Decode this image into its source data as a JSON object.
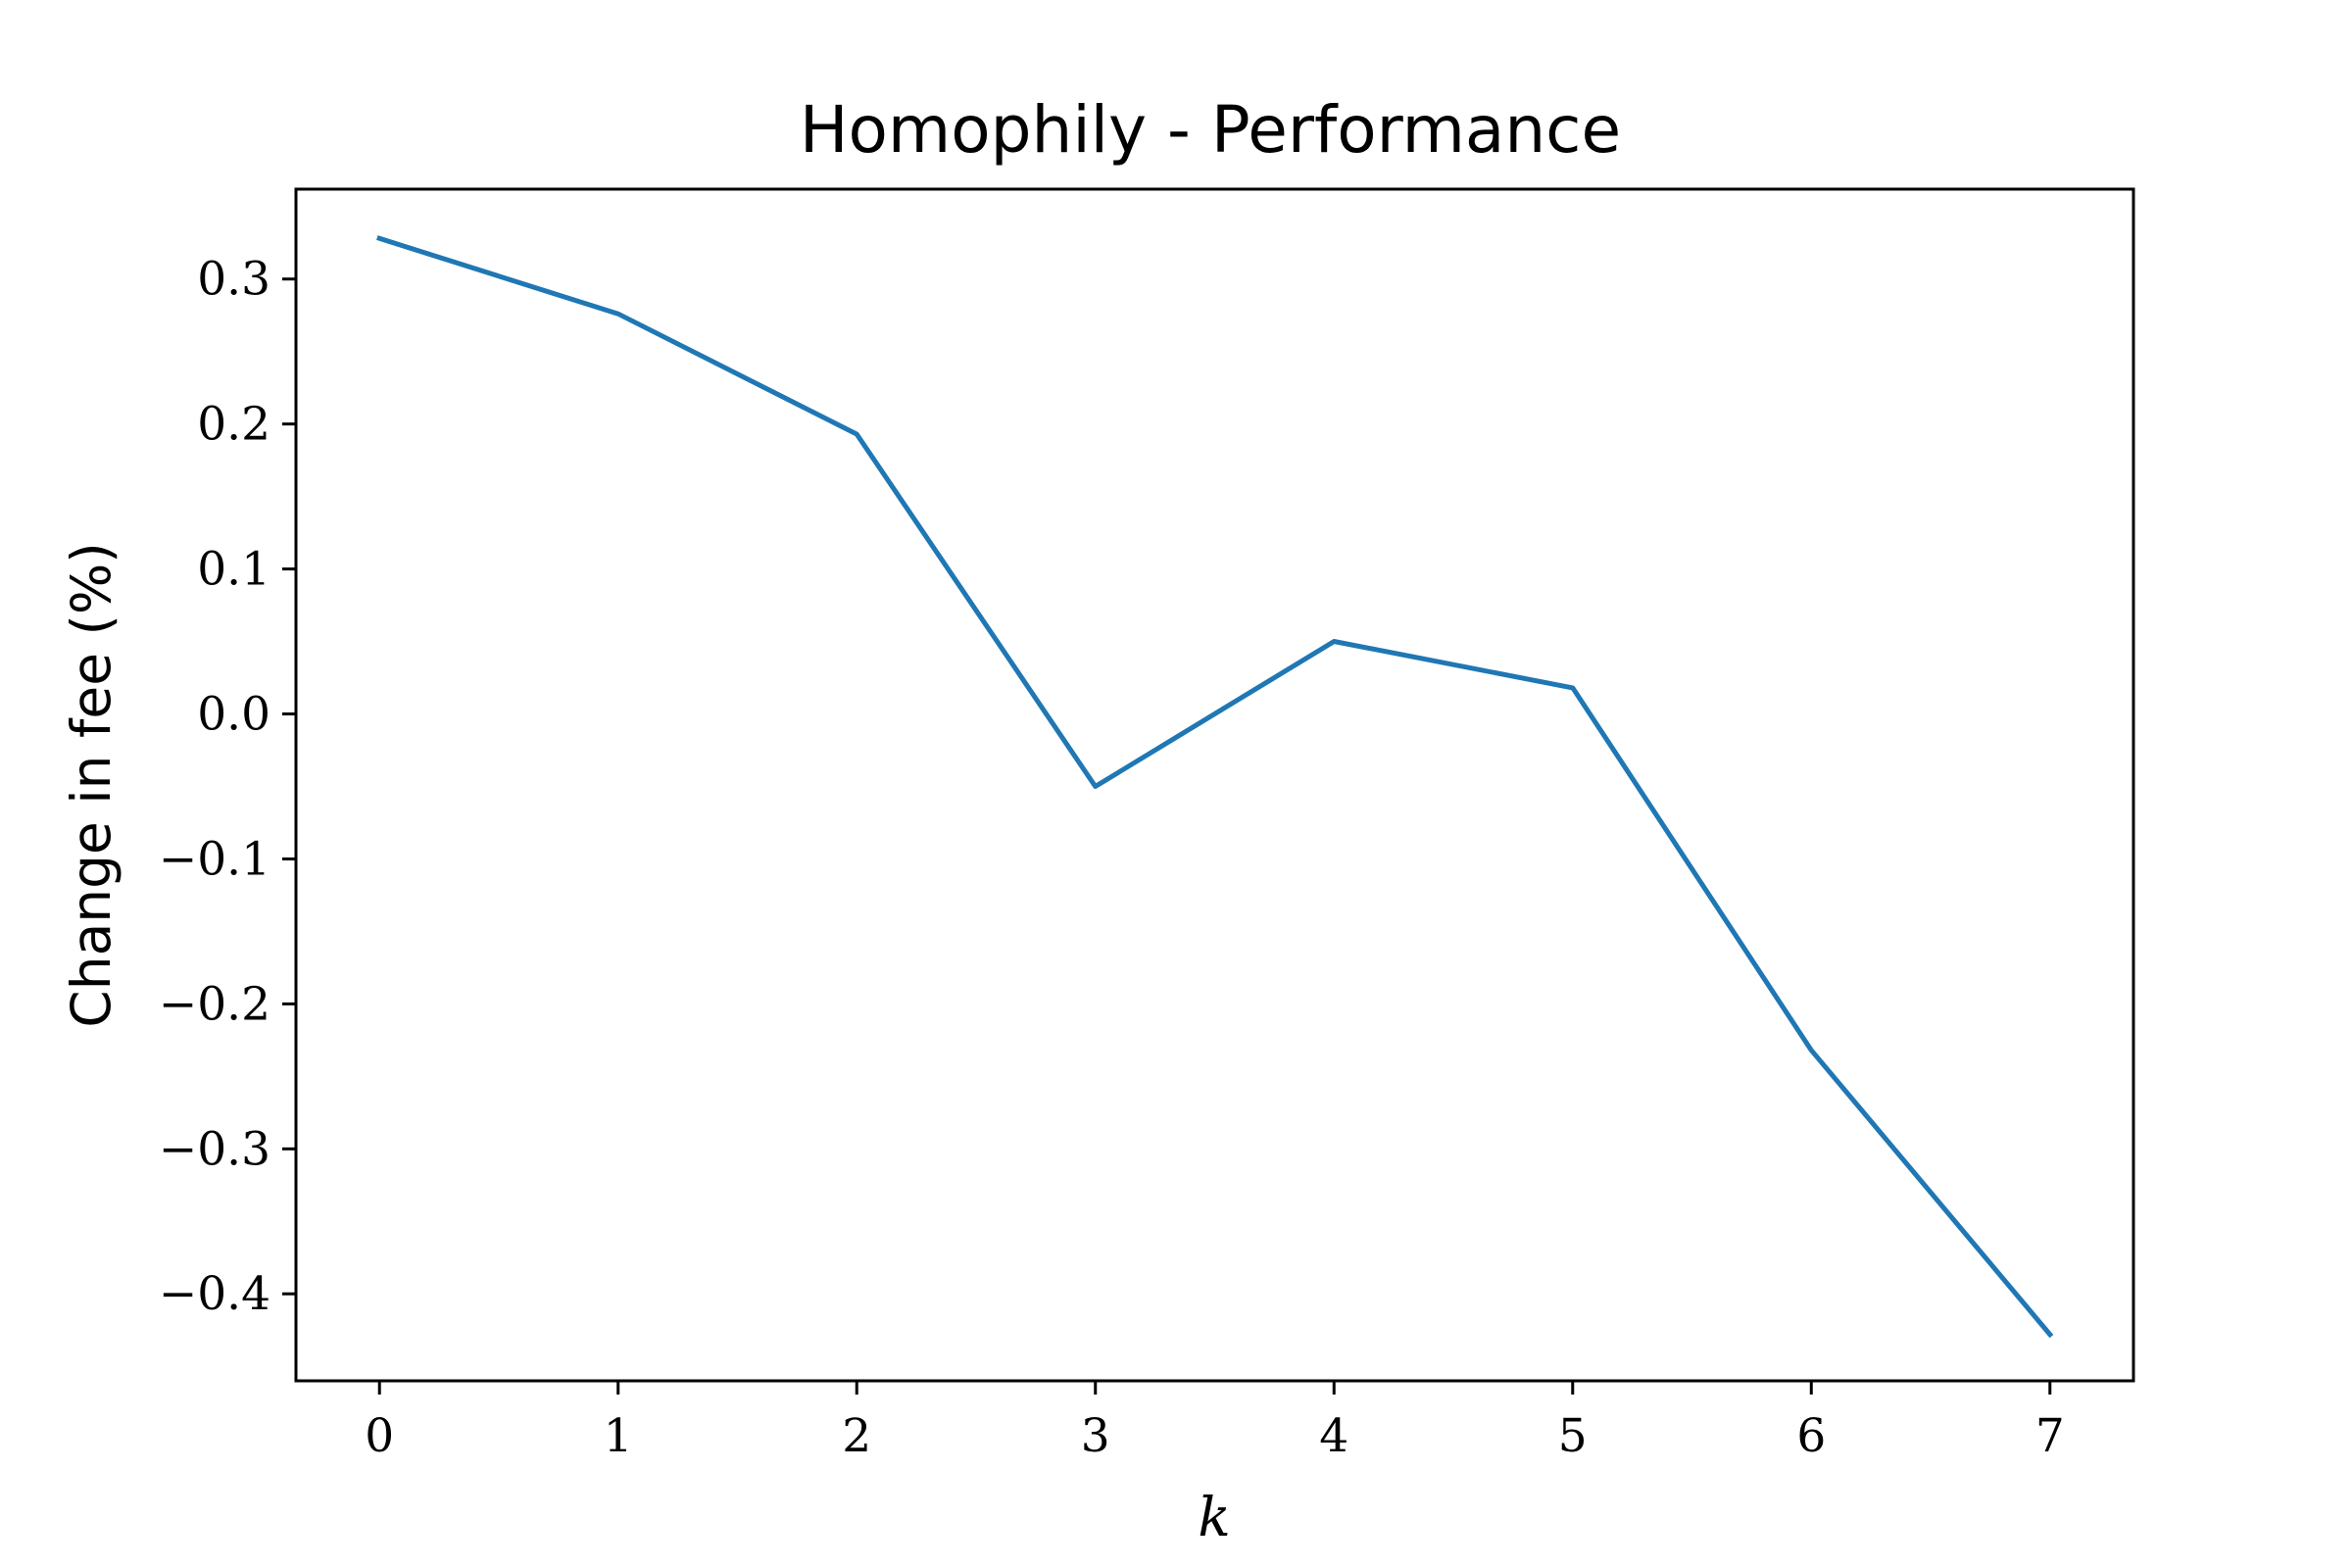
{
  "chart_data": {
    "type": "line",
    "title": "Homophily - Performance",
    "xlabel": "k",
    "ylabel": "Change in fee (%)",
    "x": [
      0,
      1,
      2,
      3,
      4,
      5,
      6,
      7
    ],
    "xlim": [
      -0.35,
      7.35
    ],
    "ylim": [
      -0.46,
      0.362
    ],
    "xticks": [
      0,
      1,
      2,
      3,
      4,
      5,
      6,
      7
    ],
    "xtick_labels": [
      "0",
      "1",
      "2",
      "3",
      "4",
      "5",
      "6",
      "7"
    ],
    "yticks": [
      0.3,
      0.2,
      0.1,
      0.0,
      -0.1,
      -0.2,
      -0.3,
      -0.4
    ],
    "ytick_labels": [
      "0.3",
      "0.2",
      "0.1",
      "0.0",
      "−0.1",
      "−0.2",
      "−0.3",
      "−0.4"
    ],
    "grid": false,
    "series": [
      {
        "values": [
          0.328,
          0.276,
          0.193,
          -0.05,
          0.05,
          0.018,
          -0.232,
          -0.428
        ],
        "color": "#1f77b4"
      }
    ]
  }
}
